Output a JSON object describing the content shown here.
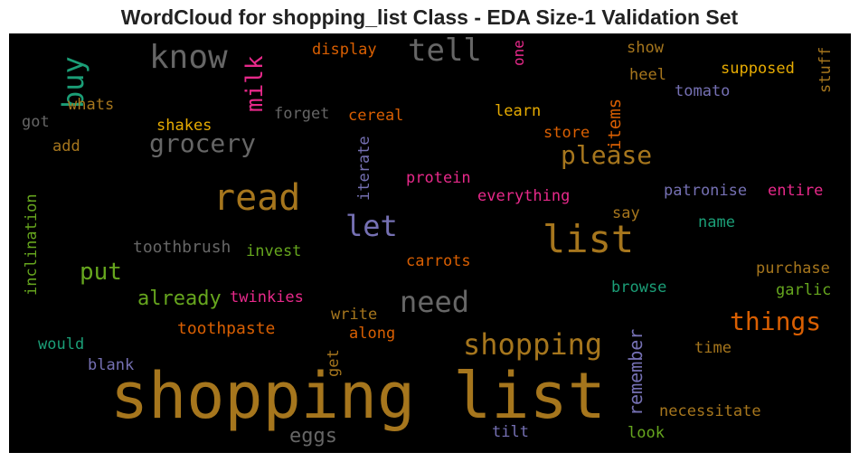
{
  "title": "WordCloud for shopping_list Class - EDA Size-1 Validation Set",
  "cloud": {
    "background": "#000000",
    "palette": [
      "#a6761d",
      "#d95f02",
      "#e7298a",
      "#66a61e",
      "#1b9e77",
      "#7570b3",
      "#e6ab02",
      "#666666"
    ],
    "words": [
      {
        "text": "shopping list",
        "color": "#a6761d"
      },
      {
        "text": "list",
        "color": "#a6761d"
      },
      {
        "text": "read",
        "color": "#a6761d"
      },
      {
        "text": "shopping",
        "color": "#a6761d"
      },
      {
        "text": "know",
        "color": "#666666"
      },
      {
        "text": "tell",
        "color": "#666666"
      },
      {
        "text": "grocery",
        "color": "#666666"
      },
      {
        "text": "need",
        "color": "#666666"
      },
      {
        "text": "let",
        "color": "#7570b3"
      },
      {
        "text": "things",
        "color": "#d95f02"
      },
      {
        "text": "please",
        "color": "#a6761d"
      },
      {
        "text": "buy",
        "color": "#1b9e77"
      },
      {
        "text": "milk",
        "color": "#e7298a"
      },
      {
        "text": "put",
        "color": "#66a61e"
      },
      {
        "text": "already",
        "color": "#66a61e"
      },
      {
        "text": "remember",
        "color": "#7570b3"
      },
      {
        "text": "items",
        "color": "#d95f02"
      },
      {
        "text": "eggs",
        "color": "#666666"
      },
      {
        "text": "toothbrush",
        "color": "#666666"
      },
      {
        "text": "toothpaste",
        "color": "#d95f02"
      },
      {
        "text": "twinkies",
        "color": "#e7298a"
      },
      {
        "text": "display",
        "color": "#d95f02"
      },
      {
        "text": "one",
        "color": "#e7298a"
      },
      {
        "text": "show",
        "color": "#a6761d"
      },
      {
        "text": "stuff",
        "color": "#a6761d"
      },
      {
        "text": "supposed",
        "color": "#e6ab02"
      },
      {
        "text": "heel",
        "color": "#a6761d"
      },
      {
        "text": "tomato",
        "color": "#7570b3"
      },
      {
        "text": "whats",
        "color": "#a6761d"
      },
      {
        "text": "got",
        "color": "#666666"
      },
      {
        "text": "forget",
        "color": "#666666"
      },
      {
        "text": "cereal",
        "color": "#d95f02"
      },
      {
        "text": "learn",
        "color": "#e6ab02"
      },
      {
        "text": "shakes",
        "color": "#e6ab02"
      },
      {
        "text": "store",
        "color": "#d95f02"
      },
      {
        "text": "add",
        "color": "#a6761d"
      },
      {
        "text": "iterate",
        "color": "#7570b3"
      },
      {
        "text": "protein",
        "color": "#e7298a"
      },
      {
        "text": "everything",
        "color": "#e7298a"
      },
      {
        "text": "patronise",
        "color": "#7570b3"
      },
      {
        "text": "entire",
        "color": "#e7298a"
      },
      {
        "text": "inclination",
        "color": "#66a61e"
      },
      {
        "text": "say",
        "color": "#a6761d"
      },
      {
        "text": "name",
        "color": "#1b9e77"
      },
      {
        "text": "invest",
        "color": "#66a61e"
      },
      {
        "text": "carrots",
        "color": "#d95f02"
      },
      {
        "text": "purchase",
        "color": "#a6761d"
      },
      {
        "text": "browse",
        "color": "#1b9e77"
      },
      {
        "text": "garlic",
        "color": "#66a61e"
      },
      {
        "text": "write",
        "color": "#a6761d"
      },
      {
        "text": "along",
        "color": "#d95f02"
      },
      {
        "text": "would",
        "color": "#1b9e77"
      },
      {
        "text": "blank",
        "color": "#7570b3"
      },
      {
        "text": "get",
        "color": "#a6761d"
      },
      {
        "text": "time",
        "color": "#a6761d"
      },
      {
        "text": "necessitate",
        "color": "#a6761d"
      },
      {
        "text": "tilt",
        "color": "#7570b3"
      },
      {
        "text": "look",
        "color": "#66a61e"
      }
    ]
  }
}
